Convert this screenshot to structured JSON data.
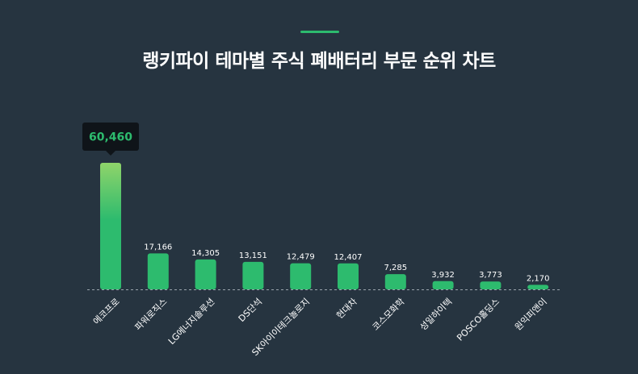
{
  "header": {
    "title": "랭키파이 테마별 주식 폐배터리 부문 순위 차트"
  },
  "colors": {
    "background": "#263440",
    "accent": "#2dbb6e",
    "bar": "#2dbb6e",
    "bar_top_gradient": "#8fd46a",
    "tooltip_bg": "#0f1419"
  },
  "chart_data": {
    "type": "bar",
    "title": "랭키파이 테마별 주식 폐배터리 부문 순위 차트",
    "xlabel": "",
    "ylabel": "",
    "categories": [
      "에코프로",
      "파워로직스",
      "LG에너지솔루션",
      "DS단석",
      "SK아이이테크놀로지",
      "현대차",
      "코스모화학",
      "성일하이텍",
      "POSCO홀딩스",
      "원익피앤이"
    ],
    "values": [
      60460,
      17166,
      14305,
      13151,
      12479,
      12407,
      7285,
      3932,
      3773,
      2170
    ],
    "value_labels": [
      "60,460",
      "17,166",
      "14,305",
      "13,151",
      "12,479",
      "12,407",
      "7,285",
      "3,932",
      "3,773",
      "2,170"
    ],
    "ylim": [
      0,
      60460
    ],
    "grid": false,
    "highlight": {
      "category": "에코프로",
      "label": "60,460"
    }
  }
}
